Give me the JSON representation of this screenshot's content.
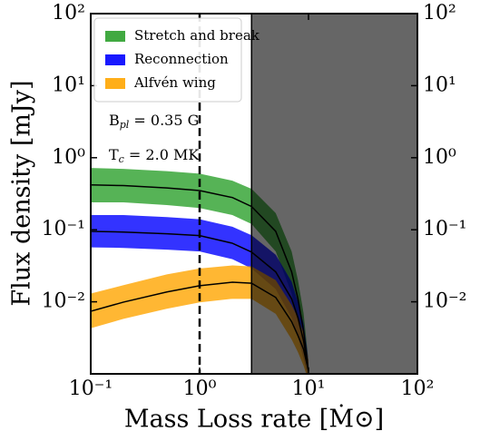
{
  "chart_data": {
    "type": "band",
    "xlabel": "Mass Loss rate [Ṁ⊙]",
    "ylabel": "Flux density [mJy]",
    "x": [
      0.1,
      0.2,
      0.5,
      1,
      2,
      3,
      5,
      7,
      8,
      9,
      10
    ],
    "series": [
      {
        "name": "Stretch and break",
        "color": "#2ca02c",
        "values": [
          0.42,
          0.41,
          0.38,
          0.35,
          0.28,
          0.21,
          0.095,
          0.026,
          0.011,
          0.004,
          0.0011
        ],
        "upper": [
          0.72,
          0.7,
          0.65,
          0.6,
          0.48,
          0.37,
          0.17,
          0.05,
          0.02,
          0.007,
          0.0015
        ],
        "lower": [
          0.24,
          0.24,
          0.22,
          0.2,
          0.16,
          0.12,
          0.05,
          0.013,
          0.005,
          0.002,
          0.0008
        ]
      },
      {
        "name": "Reconnection",
        "color": "#0000ff",
        "values": [
          0.095,
          0.093,
          0.088,
          0.083,
          0.065,
          0.049,
          0.026,
          0.011,
          0.006,
          0.0029,
          0.0011
        ],
        "upper": [
          0.16,
          0.16,
          0.15,
          0.14,
          0.11,
          0.084,
          0.045,
          0.019,
          0.01,
          0.005,
          0.0015
        ],
        "lower": [
          0.057,
          0.056,
          0.053,
          0.05,
          0.039,
          0.029,
          0.015,
          0.006,
          0.0033,
          0.0016,
          0.0008
        ]
      },
      {
        "name": "Alfvén wing",
        "color": "#ffa500",
        "values": [
          0.0074,
          0.0099,
          0.0137,
          0.0167,
          0.0187,
          0.0181,
          0.0115,
          0.0053,
          0.0034,
          0.0022,
          0.0011
        ],
        "upper": [
          0.013,
          0.017,
          0.024,
          0.029,
          0.032,
          0.031,
          0.02,
          0.009,
          0.006,
          0.0037,
          0.0015
        ],
        "lower": [
          0.0043,
          0.0058,
          0.008,
          0.0098,
          0.011,
          0.011,
          0.0068,
          0.003,
          0.002,
          0.0013,
          0.0008
        ]
      }
    ],
    "annotations": [
      [
        "B",
        "pl",
        " = 0.35 G"
      ],
      [
        "T",
        "c",
        " = 2.0 MK"
      ]
    ],
    "vline_x": 1,
    "shaded_x": [
      3,
      100
    ],
    "xscale": "log",
    "yscale": "log",
    "xlim": [
      0.1,
      100
    ],
    "ylim": [
      0.001,
      100
    ],
    "y2lim": [
      0.001,
      100
    ],
    "xticks": [
      {
        "value": 0.1,
        "label": "10⁻¹"
      },
      {
        "value": 1,
        "label": "10⁰"
      },
      {
        "value": 10,
        "label": "10¹"
      },
      {
        "value": 100,
        "label": "10²"
      }
    ],
    "yticks": [
      {
        "value": 0.01,
        "label": "10⁻²"
      },
      {
        "value": 0.1,
        "label": "10⁻¹"
      },
      {
        "value": 1,
        "label": "10⁰"
      },
      {
        "value": 10,
        "label": "10¹"
      },
      {
        "value": 100,
        "label": "10²"
      }
    ],
    "y2ticks": [
      {
        "value": 0.01,
        "label": "10⁻²"
      },
      {
        "value": 0.1,
        "label": "10⁻¹"
      },
      {
        "value": 1,
        "label": "10⁰"
      },
      {
        "value": 10,
        "label": "10¹"
      },
      {
        "value": 100,
        "label": "10²"
      }
    ],
    "legend": "upper left"
  }
}
